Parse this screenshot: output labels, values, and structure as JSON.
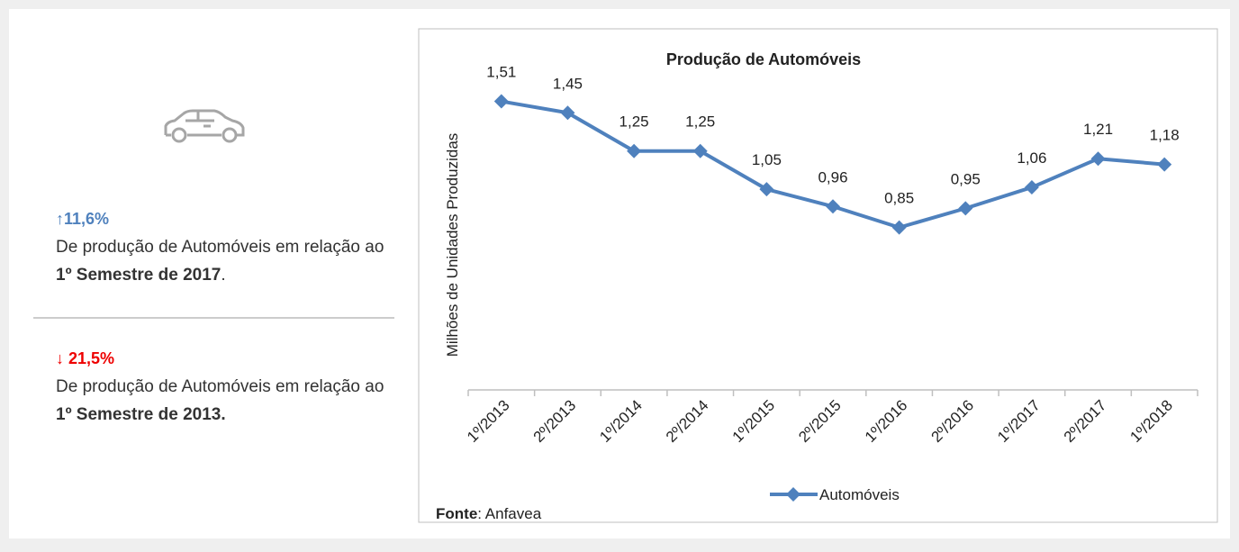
{
  "summary": [
    {
      "change": "↑11,6%",
      "text": "De produção de Automóveis em relação ao ",
      "highlight": "1º Semestre de 2017",
      "suffix": "."
    },
    {
      "change": "↓ 21,5%",
      "text": "De produção de Automóveis em relação ao ",
      "highlight": "1º Semestre de 2013."
    }
  ],
  "chart_data": {
    "type": "line",
    "title": "Produção de Automóveis",
    "ylabel": "Milhões de Unidades Produzidas",
    "categories": [
      "1º/2013",
      "2º/2013",
      "1º/2014",
      "2º/2014",
      "1º/2015",
      "2º/2015",
      "1º/2016",
      "2º/2016",
      "1º/2017",
      "2º/2017",
      "1º/2018"
    ],
    "series": [
      {
        "name": "Automóveis",
        "color": "#4f81bd",
        "values": [
          1.51,
          1.45,
          1.25,
          1.25,
          1.05,
          0.96,
          0.85,
          0.95,
          1.06,
          1.21,
          1.18
        ],
        "value_labels": [
          "1,51",
          "1,45",
          "1,25",
          "1,25",
          "1,05",
          "0,96",
          "0,85",
          "0,95",
          "1,06",
          "1,21",
          "1,18"
        ]
      }
    ],
    "ylim": [
      0,
      1.8
    ],
    "legend": "bottom",
    "source_label": "Fonte",
    "source_text": ": Anfavea"
  }
}
